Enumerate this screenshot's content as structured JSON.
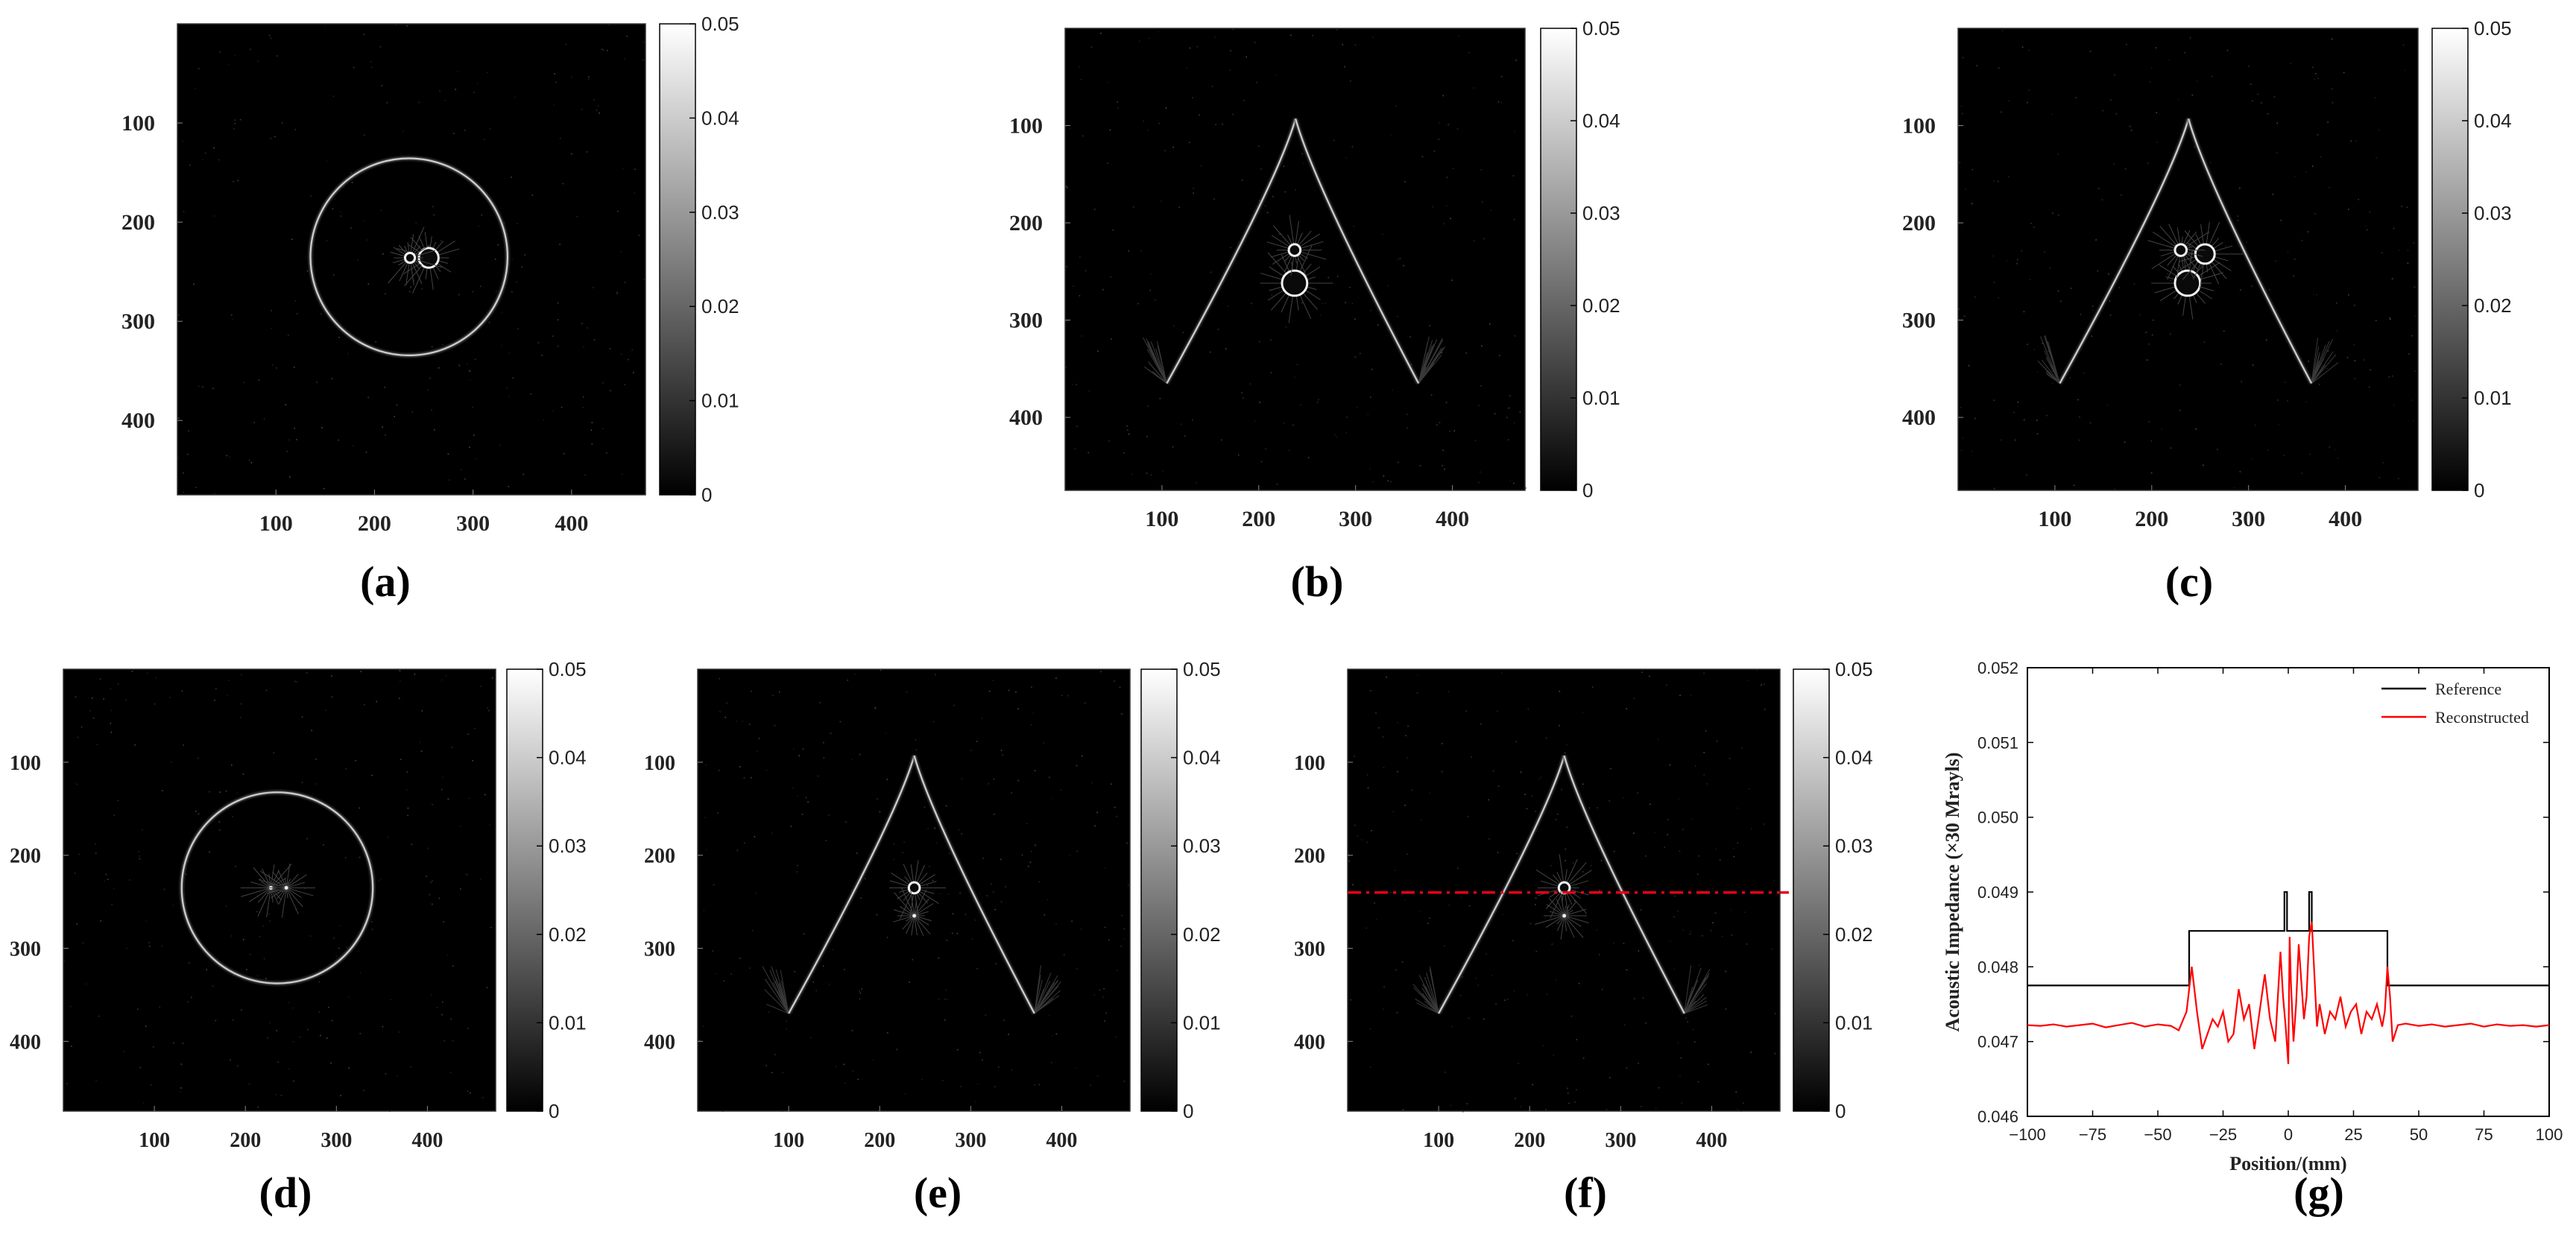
{
  "chart_data": [
    {
      "type": "heatmap",
      "panel": "(a)",
      "shape": "circle",
      "x_ticks": [
        "100",
        "200",
        "300",
        "400"
      ],
      "y_ticks": [
        "100",
        "200",
        "300",
        "400"
      ],
      "xlim": [
        0,
        475
      ],
      "ylim": [
        0,
        475
      ],
      "colorbar": {
        "range": [
          0,
          0.05
        ],
        "ticks": [
          "0",
          "0.01",
          "0.02",
          "0.03",
          "0.04",
          "0.05"
        ],
        "colormap": "gray"
      },
      "ring": {
        "cx": 235,
        "cy": 235,
        "r": 100
      },
      "inclusions": [
        {
          "cx": 255,
          "cy": 236,
          "r": 10
        },
        {
          "cx": 236,
          "cy": 236,
          "r": 5
        }
      ]
    },
    {
      "type": "heatmap",
      "panel": "(b)",
      "shape": "parabola",
      "x_ticks": [
        "100",
        "200",
        "300",
        "400"
      ],
      "y_ticks": [
        "100",
        "200",
        "300",
        "400"
      ],
      "xlim": [
        0,
        475
      ],
      "ylim": [
        0,
        475
      ],
      "colorbar": {
        "range": [
          0,
          0.05
        ],
        "ticks": [
          "0",
          "0.01",
          "0.02",
          "0.03",
          "0.04",
          "0.05"
        ],
        "colormap": "gray"
      },
      "apex": {
        "x": 238,
        "y": 93
      },
      "left_foot": {
        "x": 105,
        "y": 365
      },
      "right_foot": {
        "x": 365,
        "y": 365
      },
      "inclusions": [
        {
          "cx": 237,
          "cy": 262,
          "r": 13
        },
        {
          "cx": 237,
          "cy": 228,
          "r": 6
        }
      ]
    },
    {
      "type": "heatmap",
      "panel": "(c)",
      "shape": "parabola",
      "x_ticks": [
        "100",
        "200",
        "300",
        "400"
      ],
      "y_ticks": [
        "100",
        "200",
        "300",
        "400"
      ],
      "xlim": [
        0,
        475
      ],
      "ylim": [
        0,
        475
      ],
      "colorbar": {
        "range": [
          0,
          0.05
        ],
        "ticks": [
          "0",
          "0.01",
          "0.02",
          "0.03",
          "0.04",
          "0.05"
        ],
        "colormap": "gray"
      },
      "apex": {
        "x": 238,
        "y": 93
      },
      "left_foot": {
        "x": 105,
        "y": 365
      },
      "right_foot": {
        "x": 365,
        "y": 365
      },
      "inclusions": [
        {
          "cx": 237,
          "cy": 262,
          "r": 13
        },
        {
          "cx": 255,
          "cy": 232,
          "r": 10
        },
        {
          "cx": 230,
          "cy": 228,
          "r": 6
        }
      ]
    },
    {
      "type": "heatmap",
      "panel": "(d)",
      "shape": "circle",
      "x_ticks": [
        "100",
        "200",
        "300",
        "400"
      ],
      "y_ticks": [
        "100",
        "200",
        "300",
        "400"
      ],
      "xlim": [
        0,
        475
      ],
      "ylim": [
        0,
        475
      ],
      "colorbar": {
        "range": [
          0,
          0.05
        ],
        "ticks": [
          "0",
          "0.01",
          "0.02",
          "0.03",
          "0.04",
          "0.05"
        ],
        "colormap": "gray"
      },
      "ring": {
        "cx": 235,
        "cy": 235,
        "r": 105
      },
      "inclusions": [
        {
          "cx": 228,
          "cy": 235,
          "r": 1.5
        },
        {
          "cx": 245,
          "cy": 235,
          "r": 1.5
        }
      ]
    },
    {
      "type": "heatmap",
      "panel": "(e)",
      "shape": "parabola",
      "x_ticks": [
        "100",
        "200",
        "300",
        "400"
      ],
      "y_ticks": [
        "100",
        "200",
        "300",
        "400"
      ],
      "xlim": [
        0,
        475
      ],
      "ylim": [
        0,
        475
      ],
      "colorbar": {
        "range": [
          0,
          0.05
        ],
        "ticks": [
          "0",
          "0.01",
          "0.02",
          "0.03",
          "0.04",
          "0.05"
        ],
        "colormap": "gray"
      },
      "apex": {
        "x": 238,
        "y": 93
      },
      "left_foot": {
        "x": 100,
        "y": 370
      },
      "right_foot": {
        "x": 370,
        "y": 370
      },
      "inclusions": [
        {
          "cx": 238,
          "cy": 235,
          "r": 6
        },
        {
          "cx": 238,
          "cy": 265,
          "r": 2
        }
      ]
    },
    {
      "type": "heatmap",
      "panel": "(f)",
      "shape": "parabola",
      "x_ticks": [
        "100",
        "200",
        "300",
        "400"
      ],
      "y_ticks": [
        "100",
        "200",
        "300",
        "400"
      ],
      "xlim": [
        0,
        475
      ],
      "ylim": [
        0,
        475
      ],
      "colorbar": {
        "range": [
          0,
          0.05
        ],
        "ticks": [
          "0",
          "0.01",
          "0.02",
          "0.03",
          "0.04",
          "0.05"
        ],
        "colormap": "gray"
      },
      "apex": {
        "x": 238,
        "y": 93
      },
      "left_foot": {
        "x": 100,
        "y": 370
      },
      "right_foot": {
        "x": 370,
        "y": 370
      },
      "inclusions": [
        {
          "cx": 238,
          "cy": 235,
          "r": 6
        },
        {
          "cx": 238,
          "cy": 265,
          "r": 2
        }
      ],
      "profile_line": {
        "y": 240,
        "color": "#e8001c",
        "style": "dash-dot"
      }
    },
    {
      "type": "line",
      "panel": "(g)",
      "xlabel": "Position/(mm)",
      "ylabel": "Acoustic Impedance (×30 Mrayls)",
      "xlim": [
        -100,
        100
      ],
      "ylim": [
        0.046,
        0.052
      ],
      "x_ticks": [
        "−100",
        "−75",
        "−50",
        "−25",
        "0",
        "25",
        "50",
        "75",
        "100"
      ],
      "y_ticks": [
        "0.046",
        "0.047",
        "0.048",
        "0.049",
        "0.050",
        "0.051",
        "0.052"
      ],
      "legend_position": "top-right",
      "series": [
        {
          "name": "Reference",
          "color": "#000000",
          "x": [
            -100,
            -38,
            -38,
            -1.5,
            -1.5,
            -0.5,
            -0.5,
            0,
            0,
            8,
            8,
            9,
            9,
            10,
            10,
            38,
            38,
            100
          ],
          "y": [
            0.04775,
            0.04775,
            0.04848,
            0.04848,
            0.049,
            0.049,
            0.04848,
            0.04848,
            0.04848,
            0.04848,
            0.049,
            0.049,
            0.04848,
            0.04848,
            0.04848,
            0.04848,
            0.04775,
            0.04775
          ]
        },
        {
          "name": "Reconstructed",
          "color": "#ff0000",
          "x": [
            -100,
            -95,
            -90,
            -85,
            -80,
            -75,
            -70,
            -65,
            -60,
            -55,
            -50,
            -45,
            -42,
            -39,
            -37,
            -35,
            -33,
            -31,
            -29,
            -27,
            -25,
            -23,
            -21,
            -19,
            -17,
            -15,
            -13,
            -11,
            -9,
            -7,
            -5,
            -3,
            -2,
            -1,
            0,
            0.5,
            1,
            2,
            3,
            4,
            5,
            6,
            7,
            8,
            9,
            10,
            11,
            12,
            14,
            16,
            18,
            20,
            22,
            24,
            26,
            28,
            30,
            32,
            34,
            36,
            37,
            38,
            39,
            40,
            42,
            45,
            50,
            55,
            60,
            65,
            70,
            75,
            80,
            85,
            90,
            95,
            100
          ],
          "y": [
            0.04722,
            0.04721,
            0.04723,
            0.0472,
            0.04722,
            0.04724,
            0.04719,
            0.04722,
            0.04725,
            0.0472,
            0.04723,
            0.04721,
            0.04715,
            0.0474,
            0.048,
            0.0474,
            0.0469,
            0.0471,
            0.0473,
            0.0472,
            0.0474,
            0.047,
            0.0471,
            0.0477,
            0.0473,
            0.0475,
            0.0469,
            0.0474,
            0.0479,
            0.0473,
            0.047,
            0.0482,
            0.0476,
            0.0472,
            0.0467,
            0.0484,
            0.0478,
            0.047,
            0.0475,
            0.0483,
            0.0478,
            0.0473,
            0.0476,
            0.0484,
            0.0486,
            0.0479,
            0.0472,
            0.0475,
            0.0471,
            0.0474,
            0.0473,
            0.0476,
            0.0472,
            0.0474,
            0.0475,
            0.0471,
            0.0474,
            0.0473,
            0.0475,
            0.0472,
            0.0474,
            0.048,
            0.0476,
            0.047,
            0.04722,
            0.04724,
            0.04721,
            0.04723,
            0.0472,
            0.04722,
            0.04724,
            0.0472,
            0.04723,
            0.04721,
            0.04722,
            0.0472,
            0.04722
          ]
        }
      ]
    }
  ]
}
